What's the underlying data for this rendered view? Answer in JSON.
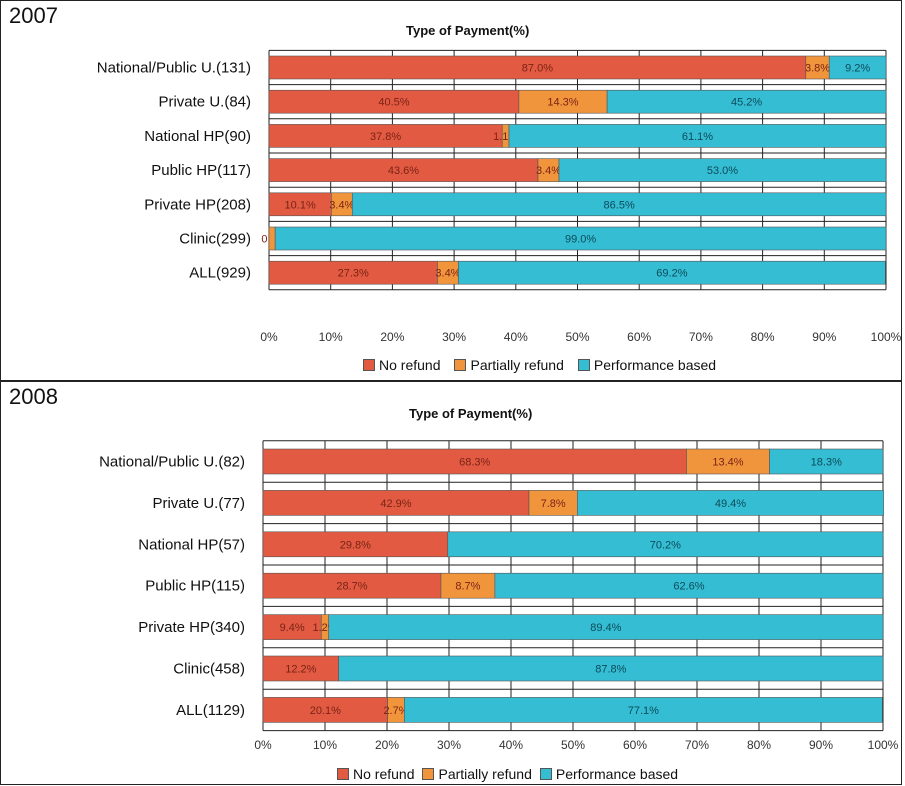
{
  "colors": {
    "no_refund": "#E25A41",
    "partially_refund": "#F1953D",
    "performance_based": "#34BDD3"
  },
  "chart_data": [
    {
      "type": "bar",
      "orientation": "horizontal",
      "stacked": true,
      "year_label": "2007",
      "title": "Type of Payment(%)",
      "categories": [
        "National/Public U.(131)",
        "Private U.(84)",
        "National HP(90)",
        "Public HP(117)",
        "Private HP(208)",
        "Clinic(299)",
        "ALL(929)"
      ],
      "series": [
        {
          "name": "No refund",
          "values": [
            87.0,
            40.5,
            37.8,
            43.6,
            10.1,
            0.0,
            27.3
          ],
          "labels": [
            "87.0%",
            "40.5%",
            "37.8%",
            "43.6%",
            "10.1%",
            "0.0",
            "27.3%"
          ]
        },
        {
          "name": "Partially refund",
          "values": [
            3.8,
            14.3,
            1.1,
            3.4,
            3.4,
            1.0,
            3.4
          ],
          "labels": [
            "3.8%",
            "14.3%",
            "1.1%",
            "3.4%",
            "3.4%",
            "",
            "3.4%"
          ]
        },
        {
          "name": "Performance based",
          "values": [
            9.2,
            45.2,
            61.1,
            53.0,
            86.5,
            99.0,
            69.2
          ],
          "labels": [
            "9.2%",
            "45.2%",
            "61.1%",
            "53.0%",
            "86.5%",
            "99.0%",
            "69.2%"
          ]
        }
      ],
      "xlim": [
        0,
        100
      ],
      "xticks": [
        "0%",
        "10%",
        "20%",
        "30%",
        "40%",
        "50%",
        "60%",
        "70%",
        "80%",
        "90%",
        "100%"
      ],
      "grid": true,
      "legend_position": "bottom"
    },
    {
      "type": "bar",
      "orientation": "horizontal",
      "stacked": true,
      "year_label": "2008",
      "title": "Type of Payment(%)",
      "categories": [
        "National/Public U.(82)",
        "Private U.(77)",
        "National HP(57)",
        "Public HP(115)",
        "Private HP(340)",
        "Clinic(458)",
        "ALL(1129)"
      ],
      "series": [
        {
          "name": "No refund",
          "values": [
            68.3,
            42.9,
            29.8,
            28.7,
            9.4,
            12.2,
            20.1
          ],
          "labels": [
            "68.3%",
            "42.9%",
            "29.8%",
            "28.7%",
            "9.4%",
            "12.2%",
            "20.1%"
          ]
        },
        {
          "name": "Partially refund",
          "values": [
            13.4,
            7.8,
            0.0,
            8.7,
            1.2,
            0.0,
            2.7
          ],
          "labels": [
            "13.4%",
            "7.8%",
            "",
            "8.7%",
            "1.2%",
            "",
            "2.7%"
          ]
        },
        {
          "name": "Performance based",
          "values": [
            18.3,
            49.4,
            70.2,
            62.6,
            89.4,
            87.8,
            77.1
          ],
          "labels": [
            "18.3%",
            "49.4%",
            "70.2%",
            "62.6%",
            "89.4%",
            "87.8%",
            "77.1%"
          ]
        }
      ],
      "xlim": [
        0,
        100
      ],
      "xticks": [
        "0%",
        "10%",
        "20%",
        "30%",
        "40%",
        "50%",
        "60%",
        "70%",
        "80%",
        "90%",
        "100%"
      ],
      "grid": true,
      "legend_position": "bottom"
    }
  ]
}
